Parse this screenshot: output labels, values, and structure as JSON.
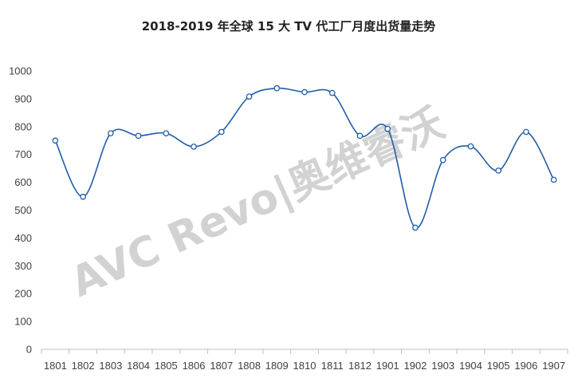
{
  "chart_data": {
    "type": "line",
    "title": "2018-2019 年全球 15 大 TV 代工厂月度出货量走势",
    "categories": [
      "1801",
      "1802",
      "1803",
      "1804",
      "1805",
      "1806",
      "1807",
      "1808",
      "1809",
      "1810",
      "1811",
      "1812",
      "1901",
      "1902",
      "1903",
      "1904",
      "1905",
      "1906",
      "1907"
    ],
    "series": [
      {
        "values": [
          750,
          548,
          776,
          767,
          776,
          728,
          781,
          908,
          938,
          924,
          921,
          767,
          792,
          437,
          680,
          729,
          642,
          781,
          609
        ]
      }
    ],
    "ylim": [
      0,
      1000
    ],
    "yticks": [
      0,
      100,
      200,
      300,
      400,
      500,
      600,
      700,
      800,
      900,
      1000
    ],
    "xlabel": "",
    "ylabel": "",
    "grid": false,
    "legend": "none",
    "colors": {
      "line": "#1f5ea8",
      "marker_fill": "#ffffff",
      "axis": "#bfbfbf"
    }
  },
  "watermark": {
    "text": "AVC Revo|奥维睿沃",
    "color": "#d2d2d2"
  }
}
